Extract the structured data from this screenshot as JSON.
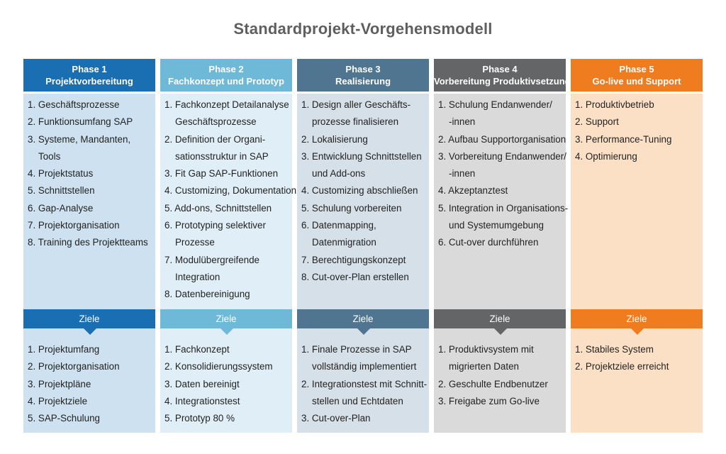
{
  "title": "Standardprojekt-Vorgehensmodell",
  "ziele_label": "Ziele",
  "phases": [
    {
      "label": "Phase 1",
      "name": "Projektvorbereitung",
      "color": "#1a6fb3",
      "tint": "#cde1f0",
      "items": [
        [
          "1. Geschäftsprozesse"
        ],
        [
          "2. Funktionsumfang SAP"
        ],
        [
          "3. Systeme, Mandanten,",
          "Tools"
        ],
        [
          "4. Projektstatus"
        ],
        [
          "5. Schnittstellen"
        ],
        [
          "6. Gap-Analyse"
        ],
        [
          "7. Projektorganisation"
        ],
        [
          "8. Training des Projektteams"
        ]
      ],
      "goals": [
        [
          "1. Projektumfang"
        ],
        [
          "2. Projektorganisation"
        ],
        [
          "3. Projektpläne"
        ],
        [
          "4. Projektziele"
        ],
        [
          "5. SAP-Schulung"
        ]
      ]
    },
    {
      "label": "Phase 2",
      "name": "Fachkonzept und Prototyp",
      "color": "#6eb8d8",
      "tint": "#e0eff7",
      "items": [
        [
          "1. Fachkonzept Detailanalyse",
          "Geschäftsprozesse"
        ],
        [
          "2. Definition der Organi-",
          "sationsstruktur in SAP"
        ],
        [
          "3. Fit Gap SAP-Funktionen"
        ],
        [
          "4. Customizing, Dokumentation"
        ],
        [
          "5. Add-ons, Schnittstellen"
        ],
        [
          "6. Prototyping selektiver",
          "Prozesse"
        ],
        [
          "7. Modulübergreifende",
          "Integration"
        ],
        [
          "8. Datenbereinigung"
        ]
      ],
      "goals": [
        [
          "1. Fachkonzept"
        ],
        [
          "2. Konsolidierungssystem"
        ],
        [
          "3. Daten bereinigt"
        ],
        [
          "4. Integrationstest"
        ],
        [
          "5. Prototyp 80 %"
        ]
      ]
    },
    {
      "label": "Phase 3",
      "name": "Realisierung",
      "color": "#4f7591",
      "tint": "#d6e0e8",
      "items": [
        [
          "1. Design aller Geschäfts-",
          "prozesse finalisieren"
        ],
        [
          "2. Lokalisierung"
        ],
        [
          "3. Entwicklung Schnittstellen",
          "und Add-ons"
        ],
        [
          "4. Customizing abschließen"
        ],
        [
          "5. Schulung vorbereiten"
        ],
        [
          "6. Datenmapping,",
          "Datenmigration"
        ],
        [
          "7. Berechtigungskonzept"
        ],
        [
          "8. Cut-over-Plan erstellen"
        ]
      ],
      "goals": [
        [
          "1. Finale Prozesse in SAP",
          "vollständig implementiert"
        ],
        [
          "2. Integrationstest mit Schnitt-",
          "stellen und Echtdaten"
        ],
        [
          "3. Cut-over-Plan"
        ]
      ]
    },
    {
      "label": "Phase 4",
      "name": "Vorbereitung Produktivsetzung",
      "color": "#636566",
      "tint": "#dadada",
      "items": [
        [
          "1. Schulung Endanwender/",
          "-innen"
        ],
        [
          "2. Aufbau Supportorganisation"
        ],
        [
          "3. Vorbereitung Endanwender/",
          "-innen"
        ],
        [
          "4. Akzeptanztest"
        ],
        [
          "5. Integration in Organisations-",
          "und Systemumgebung"
        ],
        [
          "6. Cut-over durchführen"
        ]
      ],
      "goals": [
        [
          "1. Produktivsystem mit",
          "migrierten Daten"
        ],
        [
          "2. Geschulte Endbenutzer"
        ],
        [
          "3. Freigabe zum Go-live"
        ]
      ]
    },
    {
      "label": "Phase 5",
      "name": "Go-live und Support",
      "color": "#ef7d1f",
      "tint": "#fce0c6",
      "items": [
        [
          "1. Produktivbetrieb"
        ],
        [
          "2. Support"
        ],
        [
          "3. Performance-Tuning"
        ],
        [
          "4. Optimierung"
        ]
      ],
      "goals": [
        [
          "1. Stabiles System"
        ],
        [
          "2. Projektziele erreicht"
        ]
      ]
    }
  ]
}
